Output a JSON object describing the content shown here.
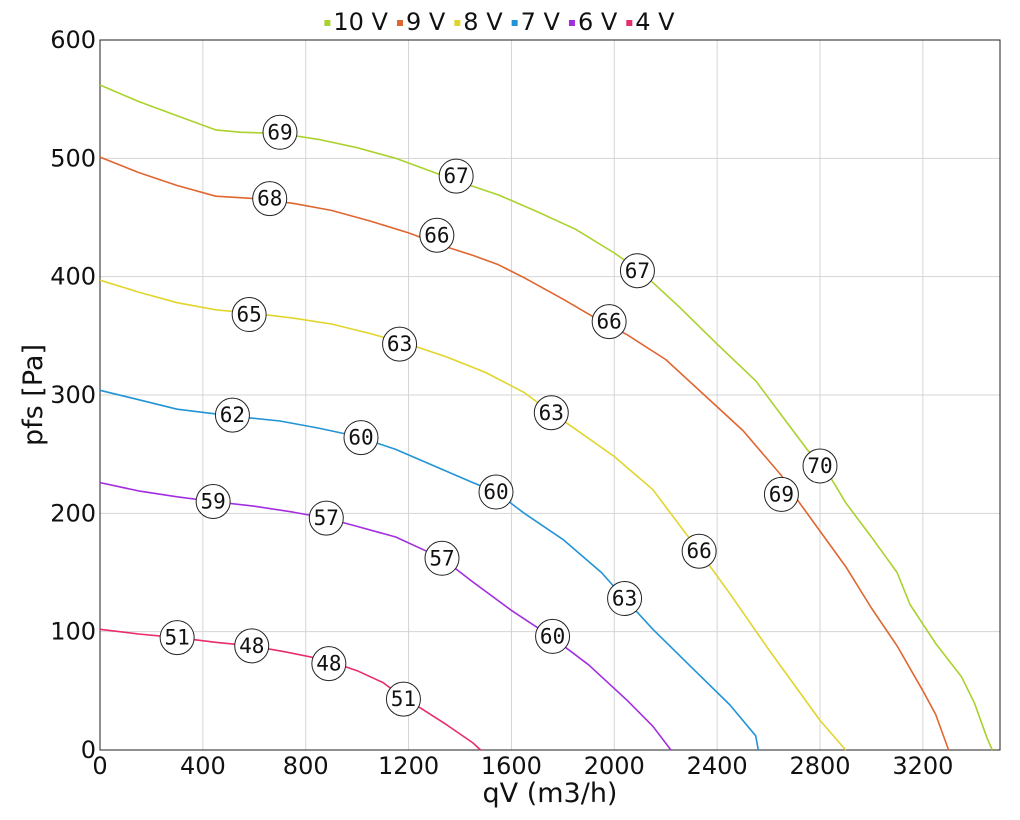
{
  "chart_data": {
    "type": "line",
    "title": "",
    "xlabel": "qV (m3/h)",
    "ylabel": "pfs [Pa]",
    "xlim": [
      0,
      3500
    ],
    "ylim": [
      0,
      600
    ],
    "xticks": [
      0,
      400,
      800,
      1200,
      1600,
      2000,
      2400,
      2800,
      3200
    ],
    "yticks": [
      0,
      100,
      200,
      300,
      400,
      500,
      600
    ],
    "grid": true,
    "legend_position": "top",
    "series": [
      {
        "name": "10 V",
        "color": "#aad22d",
        "points": [
          [
            0,
            562
          ],
          [
            150,
            548
          ],
          [
            300,
            536
          ],
          [
            450,
            524
          ],
          [
            550,
            522
          ],
          [
            700,
            521
          ],
          [
            850,
            516
          ],
          [
            1000,
            509
          ],
          [
            1150,
            500
          ],
          [
            1300,
            488
          ],
          [
            1400,
            480
          ],
          [
            1550,
            469
          ],
          [
            1700,
            455
          ],
          [
            1850,
            440
          ],
          [
            2000,
            420
          ],
          [
            2100,
            405
          ],
          [
            2250,
            375
          ],
          [
            2400,
            343
          ],
          [
            2550,
            312
          ],
          [
            2650,
            283
          ],
          [
            2750,
            254
          ],
          [
            2820,
            238
          ],
          [
            2900,
            209
          ],
          [
            3000,
            180
          ],
          [
            3050,
            165
          ],
          [
            3100,
            150
          ],
          [
            3150,
            123
          ],
          [
            3250,
            90
          ],
          [
            3350,
            62
          ],
          [
            3400,
            40
          ],
          [
            3450,
            10
          ],
          [
            3470,
            0
          ]
        ],
        "labels": [
          {
            "x": 700,
            "y": 522,
            "text": "69"
          },
          {
            "x": 1385,
            "y": 485,
            "text": "67"
          },
          {
            "x": 2090,
            "y": 405,
            "text": "67"
          },
          {
            "x": 2800,
            "y": 240,
            "text": "70"
          }
        ]
      },
      {
        "name": "9 V",
        "color": "#e06630",
        "points": [
          [
            0,
            501
          ],
          [
            150,
            488
          ],
          [
            300,
            477
          ],
          [
            450,
            468
          ],
          [
            600,
            466
          ],
          [
            750,
            462
          ],
          [
            900,
            456
          ],
          [
            1050,
            447
          ],
          [
            1200,
            437
          ],
          [
            1350,
            425
          ],
          [
            1450,
            418
          ],
          [
            1550,
            410
          ],
          [
            1650,
            399
          ],
          [
            1800,
            381
          ],
          [
            1950,
            362
          ],
          [
            2050,
            351
          ],
          [
            2200,
            330
          ],
          [
            2350,
            300
          ],
          [
            2500,
            270
          ],
          [
            2650,
            232
          ],
          [
            2700,
            215
          ],
          [
            2800,
            185
          ],
          [
            2900,
            155
          ],
          [
            3000,
            120
          ],
          [
            3100,
            88
          ],
          [
            3200,
            50
          ],
          [
            3250,
            30
          ],
          [
            3300,
            0
          ]
        ],
        "labels": [
          {
            "x": 660,
            "y": 466,
            "text": "68"
          },
          {
            "x": 1310,
            "y": 435,
            "text": "66"
          },
          {
            "x": 1980,
            "y": 362,
            "text": "66"
          },
          {
            "x": 2650,
            "y": 216,
            "text": "69"
          }
        ]
      },
      {
        "name": "8 V",
        "color": "#e1d52c",
        "points": [
          [
            0,
            397
          ],
          [
            150,
            387
          ],
          [
            300,
            378
          ],
          [
            450,
            372
          ],
          [
            600,
            369
          ],
          [
            750,
            365
          ],
          [
            900,
            360
          ],
          [
            1050,
            352
          ],
          [
            1200,
            343
          ],
          [
            1350,
            332
          ],
          [
            1500,
            319
          ],
          [
            1650,
            302
          ],
          [
            1750,
            286
          ],
          [
            1850,
            271
          ],
          [
            2000,
            248
          ],
          [
            2150,
            220
          ],
          [
            2330,
            168
          ],
          [
            2450,
            132
          ],
          [
            2600,
            85
          ],
          [
            2700,
            55
          ],
          [
            2800,
            25
          ],
          [
            2900,
            0
          ]
        ],
        "labels": [
          {
            "x": 580,
            "y": 368,
            "text": "65"
          },
          {
            "x": 1165,
            "y": 343,
            "text": "63"
          },
          {
            "x": 1755,
            "y": 285,
            "text": "63"
          },
          {
            "x": 2330,
            "y": 168,
            "text": "66"
          }
        ]
      },
      {
        "name": "7 V",
        "color": "#2294d6",
        "points": [
          [
            0,
            304
          ],
          [
            150,
            296
          ],
          [
            300,
            288
          ],
          [
            450,
            284
          ],
          [
            520,
            282
          ],
          [
            700,
            278
          ],
          [
            850,
            272
          ],
          [
            1000,
            265
          ],
          [
            1150,
            254
          ],
          [
            1300,
            240
          ],
          [
            1450,
            226
          ],
          [
            1540,
            218
          ],
          [
            1650,
            200
          ],
          [
            1800,
            178
          ],
          [
            1950,
            150
          ],
          [
            2040,
            128
          ],
          [
            2150,
            102
          ],
          [
            2300,
            70
          ],
          [
            2450,
            38
          ],
          [
            2550,
            12
          ],
          [
            2560,
            0
          ]
        ],
        "labels": [
          {
            "x": 515,
            "y": 283,
            "text": "62"
          },
          {
            "x": 1015,
            "y": 264,
            "text": "60"
          },
          {
            "x": 1540,
            "y": 218,
            "text": "60"
          },
          {
            "x": 2040,
            "y": 128,
            "text": "63"
          }
        ]
      },
      {
        "name": "6 V",
        "color": "#a22ee0",
        "points": [
          [
            0,
            226
          ],
          [
            150,
            219
          ],
          [
            300,
            214
          ],
          [
            440,
            210
          ],
          [
            600,
            206
          ],
          [
            750,
            201
          ],
          [
            880,
            196
          ],
          [
            1000,
            189
          ],
          [
            1150,
            180
          ],
          [
            1250,
            170
          ],
          [
            1330,
            162
          ],
          [
            1450,
            142
          ],
          [
            1600,
            118
          ],
          [
            1760,
            95
          ],
          [
            1900,
            72
          ],
          [
            2050,
            42
          ],
          [
            2150,
            20
          ],
          [
            2220,
            0
          ]
        ],
        "labels": [
          {
            "x": 440,
            "y": 210,
            "text": "59"
          },
          {
            "x": 880,
            "y": 196,
            "text": "57"
          },
          {
            "x": 1330,
            "y": 162,
            "text": "57"
          },
          {
            "x": 1760,
            "y": 96,
            "text": "60"
          }
        ]
      },
      {
        "name": "4 V",
        "color": "#e82c6e",
        "points": [
          [
            0,
            102
          ],
          [
            150,
            98
          ],
          [
            300,
            95
          ],
          [
            450,
            91
          ],
          [
            590,
            88
          ],
          [
            720,
            83
          ],
          [
            880,
            76
          ],
          [
            1000,
            67
          ],
          [
            1100,
            57
          ],
          [
            1180,
            44
          ],
          [
            1250,
            35
          ],
          [
            1350,
            21
          ],
          [
            1450,
            6
          ],
          [
            1480,
            0
          ]
        ],
        "labels": [
          {
            "x": 300,
            "y": 95,
            "text": "51"
          },
          {
            "x": 590,
            "y": 88,
            "text": "48"
          },
          {
            "x": 890,
            "y": 73,
            "text": "48"
          },
          {
            "x": 1180,
            "y": 43,
            "text": "51"
          }
        ]
      }
    ]
  }
}
